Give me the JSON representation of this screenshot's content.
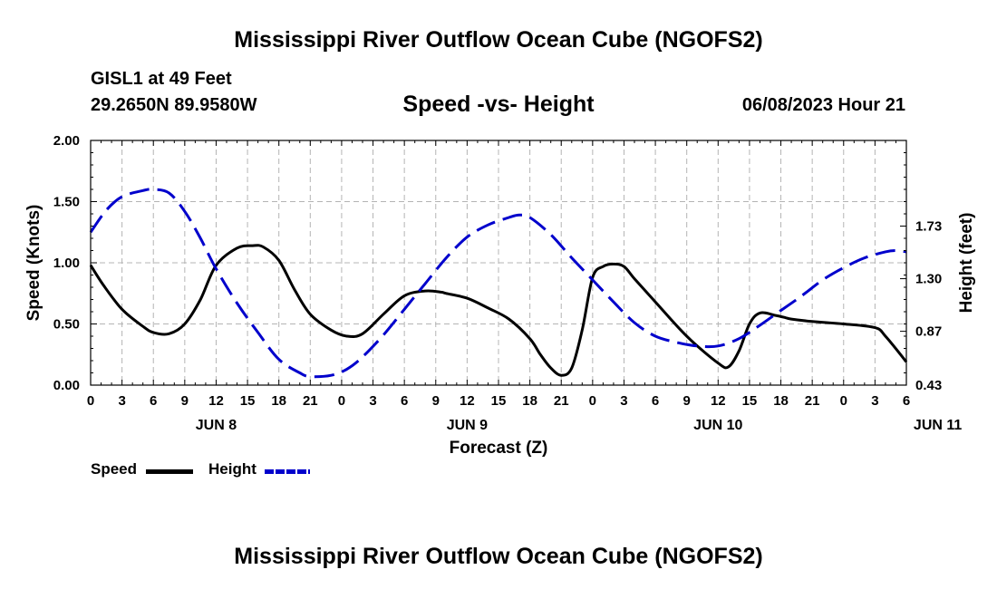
{
  "header": {
    "title": "Mississippi River Outflow Ocean Cube (NGOFS2)",
    "station": "GISL1 at 49 Feet",
    "latlon": "29.2650N  89.9580W",
    "subtitle": "Speed -vs- Height",
    "datetime": "06/08/2023 Hour 21"
  },
  "footer": {
    "title": "Mississippi River Outflow Ocean Cube (NGOFS2)"
  },
  "chart_data": {
    "type": "line",
    "xlabel": "Forecast (Z)",
    "x_ticks": [
      "0",
      "3",
      "6",
      "9",
      "12",
      "15",
      "18",
      "21",
      "0",
      "3",
      "6",
      "9",
      "12",
      "15",
      "18",
      "21",
      "0",
      "3",
      "6",
      "9",
      "12",
      "15",
      "18",
      "21",
      "0",
      "3",
      "6"
    ],
    "date_labels": [
      {
        "label": "JUN 8",
        "hour": 12
      },
      {
        "label": "JUN 9",
        "hour": 36
      },
      {
        "label": "JUN 10",
        "hour": 60
      },
      {
        "label": "JUN 11",
        "hour": 81
      }
    ],
    "x_range_hours": [
      0,
      78
    ],
    "left_axis": {
      "label": "Speed (Knots)",
      "ylim": [
        0,
        2.0
      ],
      "ticks": [
        "0.00",
        "0.50",
        "1.00",
        "1.50",
        "2.00"
      ]
    },
    "right_axis": {
      "label": "Height (feet)",
      "ylim": [
        0.43,
        2.43
      ],
      "ticks": [
        "0.43",
        "0.87",
        "1.30",
        "1.73"
      ],
      "tick_values": [
        0.43,
        0.87,
        1.3,
        1.73
      ]
    },
    "grid": true,
    "series": [
      {
        "name": "Speed",
        "axis": "left",
        "color": "#000000",
        "dash": "solid",
        "x": [
          0,
          1.2,
          3,
          5,
          6,
          7.5,
          9,
          10.5,
          12,
          14,
          15.5,
          16.5,
          18,
          19.5,
          21,
          23,
          24.5,
          26,
          28,
          30,
          32,
          33.5,
          34,
          36,
          38,
          40,
          42,
          43,
          44,
          45,
          46,
          47,
          48,
          49,
          50,
          51,
          52,
          54,
          57,
          60,
          61,
          62,
          63,
          64,
          65.5,
          66.5,
          67,
          69,
          72,
          75,
          76,
          78
        ],
        "y": [
          0.98,
          0.82,
          0.62,
          0.48,
          0.43,
          0.42,
          0.5,
          0.7,
          0.98,
          1.12,
          1.14,
          1.13,
          1.02,
          0.78,
          0.58,
          0.45,
          0.4,
          0.42,
          0.58,
          0.73,
          0.77,
          0.76,
          0.75,
          0.71,
          0.63,
          0.54,
          0.38,
          0.25,
          0.14,
          0.08,
          0.14,
          0.45,
          0.88,
          0.97,
          0.99,
          0.97,
          0.87,
          0.68,
          0.4,
          0.18,
          0.15,
          0.28,
          0.5,
          0.59,
          0.57,
          0.55,
          0.54,
          0.52,
          0.5,
          0.47,
          0.4,
          0.19
        ]
      },
      {
        "name": "Height",
        "axis": "right",
        "color": "#0000cc",
        "dash": "dashed",
        "x": [
          0,
          1.5,
          3,
          5,
          6,
          7.5,
          9,
          10.5,
          12,
          14,
          16,
          18,
          20,
          21,
          23,
          24.5,
          26,
          28,
          30,
          32,
          34,
          36,
          38,
          40,
          41,
          42,
          44,
          46,
          48,
          50,
          52,
          54,
          56,
          58,
          60,
          62,
          64,
          66,
          68,
          70,
          72,
          74,
          76,
          77,
          78
        ],
        "y": [
          1.68,
          1.86,
          1.97,
          2.02,
          2.03,
          2.0,
          1.85,
          1.63,
          1.38,
          1.1,
          0.86,
          0.64,
          0.53,
          0.5,
          0.51,
          0.56,
          0.66,
          0.84,
          1.05,
          1.26,
          1.47,
          1.64,
          1.74,
          1.8,
          1.82,
          1.8,
          1.66,
          1.47,
          1.29,
          1.11,
          0.94,
          0.83,
          0.78,
          0.75,
          0.75,
          0.81,
          0.92,
          1.04,
          1.16,
          1.29,
          1.39,
          1.47,
          1.52,
          1.53,
          1.52
        ]
      }
    ]
  },
  "legend": {
    "speed_label": "Speed",
    "height_label": "Height"
  },
  "colors": {
    "speed": "#000000",
    "height": "#0000cc",
    "grid": "#b4b4b4"
  }
}
